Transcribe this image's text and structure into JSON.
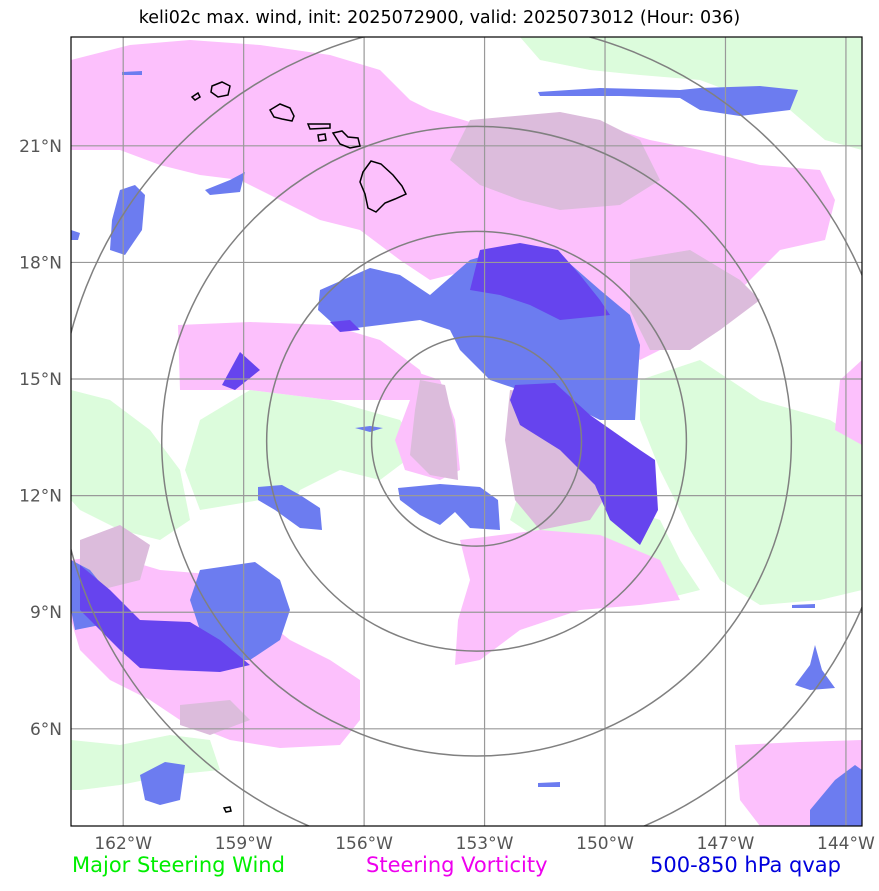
{
  "title": "keli02c max. wind, init: 2025072900, valid: 2025073012 (Hour: 036)",
  "map": {
    "lon_range": [
      -163.3,
      -143.6
    ],
    "lat_range": [
      3.5,
      23.8
    ],
    "lat_ticks": [
      {
        "value": 21,
        "label": "21°N"
      },
      {
        "value": 18,
        "label": "18°N"
      },
      {
        "value": 15,
        "label": "15°N"
      },
      {
        "value": 12,
        "label": "12°N"
      },
      {
        "value": 9,
        "label": "9°N"
      },
      {
        "value": 6,
        "label": "6°N"
      }
    ],
    "lon_ticks": [
      {
        "value": -162,
        "label": "162°W"
      },
      {
        "value": -159,
        "label": "159°W"
      },
      {
        "value": -156,
        "label": "156°W"
      },
      {
        "value": -153,
        "label": "153°W"
      },
      {
        "value": -150,
        "label": "150°W"
      },
      {
        "value": -147,
        "label": "147°W"
      },
      {
        "value": -144,
        "label": "144°W"
      }
    ],
    "storm_center": {
      "lon": -153.2,
      "lat": 13.4
    },
    "range_rings_deg": [
      2.7,
      5.4,
      8.1,
      10.8
    ]
  },
  "legend": {
    "wind": {
      "label": "Major Steering Wind",
      "color": "#00ee00"
    },
    "vorticity": {
      "label": "Steering Vorticity",
      "color": "#ee00ee"
    },
    "qvap": {
      "label": "500-850 hPa qvap",
      "color": "#0000dd"
    }
  },
  "colors": {
    "wind_fill": "#dcfcdc",
    "vorticity_fill": "#fcc0fc",
    "overlap_fill": "#dcbcdc",
    "qvap_fill": "#6c7cf0",
    "qvap_strong_fill": "#6644ee",
    "grid": "#999999",
    "ring": "#808080",
    "coast": "#000000"
  }
}
